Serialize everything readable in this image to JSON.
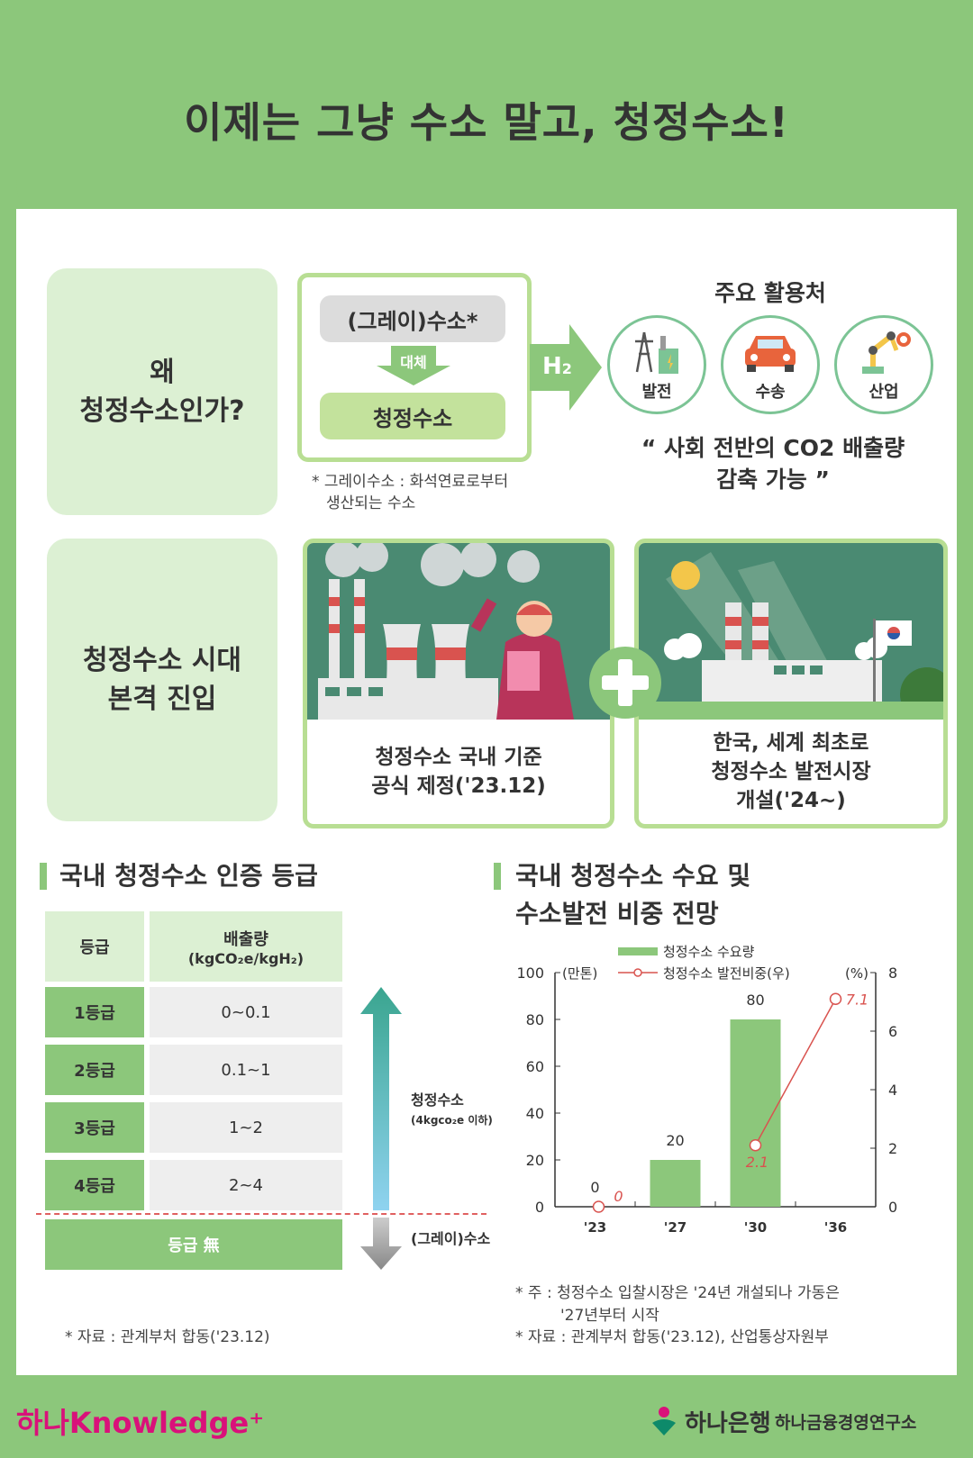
{
  "title": "이제는 그냥 수소 말고, 청정수소!",
  "why": {
    "label_line1": "왜",
    "label_line2": "청정수소인가?",
    "gray": "(그레이)수소*",
    "replace": "대체",
    "clean": "청정수소",
    "h2_main": "H",
    "h2_sub": "2",
    "footnote_line1": "* 그레이수소 : 화석연료로부터",
    "footnote_line2": "생산되는 수소",
    "uses_title": "주요 활용처",
    "uses": [
      "발전",
      "수송",
      "산업"
    ],
    "quote_line1": "“ 사회 전반의 CO2 배출량",
    "quote_line2": "감축 가능 ”"
  },
  "era": {
    "label_line1": "청정수소 시대",
    "label_line2": "본격 진입",
    "card1_line1": "청정수소 국내 기준",
    "card1_line2": "공식 제정('23.12)",
    "card2_line1": "한국, 세계 최초로",
    "card2_line2": "청정수소 발전시장",
    "card2_line3": "개설('24~)"
  },
  "grades": {
    "section_title": "국내 청정수소 인증 등급",
    "header_grade": "등급",
    "header_emission_line1": "배출량",
    "header_emission_line2": "(kgCO₂e/kgH₂)",
    "rows": [
      {
        "grade": "1등급",
        "value": "0~0.1"
      },
      {
        "grade": "2등급",
        "value": "0.1~1"
      },
      {
        "grade": "3등급",
        "value": "1~2"
      },
      {
        "grade": "4등급",
        "value": "2~4"
      }
    ],
    "none": "등급 無",
    "clean_label": "청정수소",
    "clean_sub": "(4kgco₂e 이하)",
    "gray_label": "(그레이)수소",
    "source": "* 자료 : 관계부처 합동('23.12)"
  },
  "demand": {
    "section_title_line1": "국내 청정수소 수요 및",
    "section_title_line2": "수소발전 비중 전망",
    "note_line1": "* 주 : 청정수소 입찰시장은 '24년 개설되나 가동은",
    "note_line2": "'27년부터 시작",
    "source": "* 자료 : 관계부처 합동('23.12), 산업통상자원부"
  },
  "chart_data": {
    "type": "bar",
    "categories": [
      "'23",
      "'27",
      "'30",
      "'36"
    ],
    "series": [
      {
        "name": "청정수소 수요량",
        "type": "bar",
        "axis": "left",
        "values": [
          0,
          20,
          80,
          null
        ],
        "labels": [
          "0",
          "20",
          "80",
          ""
        ]
      },
      {
        "name": "청정수소 발전비중(우)",
        "type": "line",
        "axis": "right",
        "values": [
          0,
          null,
          2.1,
          7.1
        ],
        "labels": [
          "0",
          "",
          "2.1",
          "7.1"
        ]
      }
    ],
    "left_unit": "(만톤)",
    "right_unit": "(%)",
    "ylim_left": [
      0,
      100
    ],
    "ylim_right": [
      0,
      8
    ],
    "yticks_left": [
      "0",
      "20",
      "40",
      "60",
      "80",
      "100"
    ],
    "yticks_right": [
      "0",
      "2",
      "4",
      "6",
      "8"
    ],
    "legend_position": "top",
    "bar_color": "#8cc77b",
    "line_color": "#d9534f"
  },
  "footer": {
    "left_brand": "하나Knowledge",
    "right_brand": "하나은행",
    "right_institute": "하나금융경영연구소"
  }
}
